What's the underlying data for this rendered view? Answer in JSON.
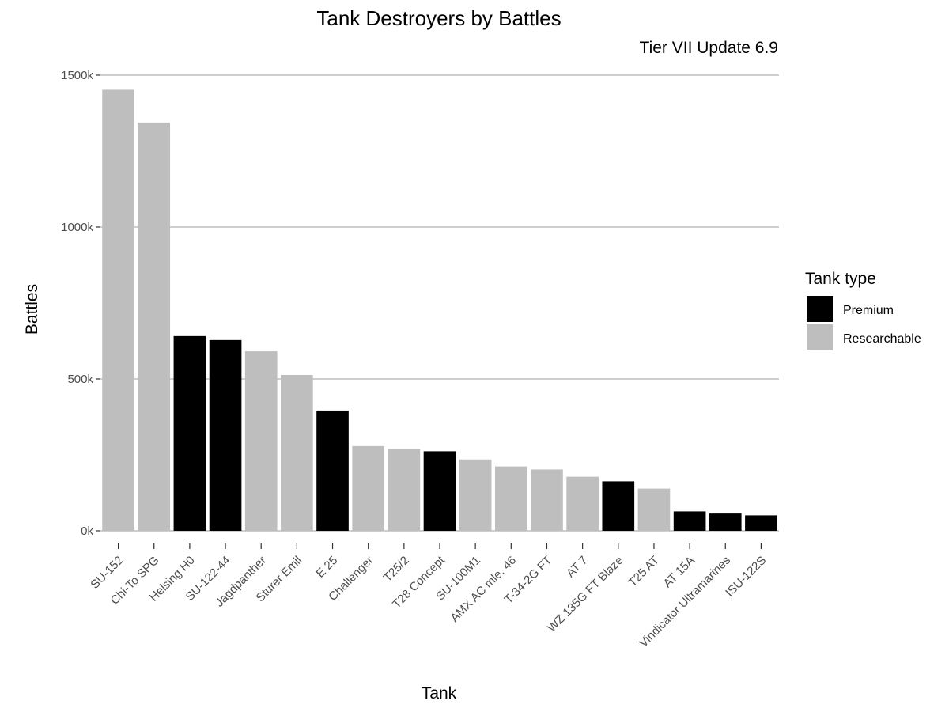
{
  "chart_data": {
    "type": "bar",
    "title": "Tank Destroyers by Battles",
    "subtitle": "Tier VII Update 6.9",
    "xlabel": "Tank",
    "ylabel": "Battles",
    "ylim": [
      0,
      1500000
    ],
    "yticks": [
      {
        "value": 0,
        "label": "0k"
      },
      {
        "value": 500000,
        "label": "500k"
      },
      {
        "value": 1000000,
        "label": "1000k"
      },
      {
        "value": 1500000,
        "label": "1500k"
      }
    ],
    "grid": "horizontal major lines only",
    "legend": {
      "title": "Tank type",
      "position": "right",
      "entries": [
        {
          "label": "Premium",
          "color": "#000000"
        },
        {
          "label": "Researchable",
          "color": "#bebebe"
        }
      ]
    },
    "bars": [
      {
        "category": "SU-152",
        "value": 1452000,
        "type": "Researchable"
      },
      {
        "category": "Chi-To SPG",
        "value": 1344000,
        "type": "Researchable"
      },
      {
        "category": "Helsing H0",
        "value": 641000,
        "type": "Premium"
      },
      {
        "category": "SU-122-44",
        "value": 628000,
        "type": "Premium"
      },
      {
        "category": "Jagdpanther",
        "value": 591000,
        "type": "Researchable"
      },
      {
        "category": "Sturer Emil",
        "value": 513000,
        "type": "Researchable"
      },
      {
        "category": "E 25",
        "value": 396000,
        "type": "Premium"
      },
      {
        "category": "Challenger",
        "value": 279000,
        "type": "Researchable"
      },
      {
        "category": "T25/2",
        "value": 269000,
        "type": "Researchable"
      },
      {
        "category": "T28 Concept",
        "value": 262000,
        "type": "Premium"
      },
      {
        "category": "SU-100M1",
        "value": 235000,
        "type": "Researchable"
      },
      {
        "category": "AMX AC mle. 46",
        "value": 212000,
        "type": "Researchable"
      },
      {
        "category": "T-34-2G FT",
        "value": 202000,
        "type": "Researchable"
      },
      {
        "category": "AT 7",
        "value": 178000,
        "type": "Researchable"
      },
      {
        "category": "WZ 135G FT Blaze",
        "value": 163000,
        "type": "Premium"
      },
      {
        "category": "T25 AT",
        "value": 139000,
        "type": "Researchable"
      },
      {
        "category": "AT 15A",
        "value": 64000,
        "type": "Premium"
      },
      {
        "category": "Vindicator Ultramarines",
        "value": 57000,
        "type": "Premium"
      },
      {
        "category": "ISU-122S",
        "value": 51000,
        "type": "Premium"
      }
    ]
  }
}
